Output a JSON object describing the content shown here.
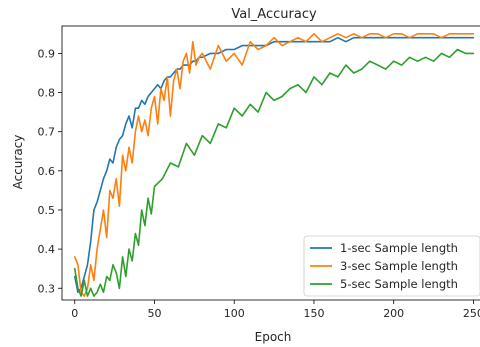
{
  "chart_data": {
    "type": "line",
    "title": "Val_Accuracy",
    "xlabel": "Epoch",
    "ylabel": "Accuracy",
    "xlim": [
      -8,
      256
    ],
    "ylim": [
      0.27,
      0.97
    ],
    "xticks": [
      0,
      50,
      100,
      150,
      200,
      250
    ],
    "yticks": [
      0.3,
      0.4,
      0.5,
      0.6,
      0.7,
      0.8,
      0.9
    ],
    "xtick_labels": [
      "0",
      "50",
      "100",
      "150",
      "200",
      "250"
    ],
    "ytick_labels": [
      "0.3",
      "0.4",
      "0.5",
      "0.6",
      "0.7",
      "0.8",
      "0.9"
    ],
    "grid": false,
    "legend_position": "lower-right",
    "series": [
      {
        "name": "1-sec Sample length",
        "color": "#1f77b4",
        "x": [
          0,
          2,
          4,
          6,
          8,
          10,
          12,
          14,
          16,
          18,
          20,
          22,
          24,
          26,
          28,
          30,
          32,
          34,
          36,
          38,
          40,
          42,
          44,
          46,
          48,
          50,
          52,
          54,
          56,
          58,
          60,
          62,
          64,
          66,
          68,
          70,
          72,
          74,
          76,
          78,
          80,
          85,
          90,
          95,
          100,
          105,
          110,
          115,
          120,
          125,
          130,
          135,
          140,
          145,
          150,
          155,
          160,
          165,
          170,
          175,
          180,
          185,
          190,
          195,
          200,
          205,
          210,
          215,
          220,
          225,
          230,
          235,
          240,
          245,
          250
        ],
        "values": [
          0.33,
          0.29,
          0.3,
          0.33,
          0.36,
          0.42,
          0.5,
          0.52,
          0.55,
          0.58,
          0.6,
          0.63,
          0.62,
          0.66,
          0.68,
          0.69,
          0.72,
          0.74,
          0.71,
          0.76,
          0.76,
          0.78,
          0.77,
          0.79,
          0.8,
          0.81,
          0.82,
          0.81,
          0.83,
          0.84,
          0.84,
          0.85,
          0.86,
          0.86,
          0.87,
          0.87,
          0.87,
          0.88,
          0.88,
          0.89,
          0.89,
          0.9,
          0.9,
          0.91,
          0.91,
          0.92,
          0.92,
          0.92,
          0.92,
          0.93,
          0.93,
          0.93,
          0.93,
          0.93,
          0.93,
          0.93,
          0.93,
          0.94,
          0.93,
          0.94,
          0.94,
          0.94,
          0.94,
          0.94,
          0.94,
          0.94,
          0.94,
          0.94,
          0.94,
          0.94,
          0.94,
          0.94,
          0.94,
          0.94,
          0.94
        ]
      },
      {
        "name": "3-sec Sample length",
        "color": "#ff7f0e",
        "x": [
          0,
          2,
          4,
          6,
          8,
          10,
          12,
          14,
          16,
          18,
          20,
          22,
          24,
          26,
          28,
          30,
          32,
          34,
          36,
          38,
          40,
          42,
          44,
          46,
          48,
          50,
          52,
          54,
          56,
          58,
          60,
          62,
          64,
          66,
          68,
          70,
          72,
          74,
          76,
          78,
          80,
          85,
          90,
          95,
          100,
          105,
          110,
          115,
          120,
          125,
          130,
          135,
          140,
          145,
          150,
          155,
          160,
          165,
          170,
          175,
          180,
          185,
          190,
          195,
          200,
          205,
          210,
          215,
          220,
          225,
          230,
          235,
          240,
          245,
          250
        ],
        "values": [
          0.38,
          0.36,
          0.29,
          0.28,
          0.3,
          0.36,
          0.32,
          0.4,
          0.45,
          0.5,
          0.43,
          0.55,
          0.53,
          0.58,
          0.51,
          0.64,
          0.6,
          0.66,
          0.62,
          0.7,
          0.74,
          0.7,
          0.73,
          0.69,
          0.76,
          0.79,
          0.72,
          0.81,
          0.78,
          0.84,
          0.74,
          0.83,
          0.86,
          0.81,
          0.88,
          0.9,
          0.85,
          0.93,
          0.87,
          0.89,
          0.9,
          0.86,
          0.92,
          0.88,
          0.9,
          0.87,
          0.93,
          0.91,
          0.92,
          0.94,
          0.92,
          0.93,
          0.94,
          0.93,
          0.95,
          0.93,
          0.94,
          0.95,
          0.94,
          0.95,
          0.94,
          0.95,
          0.95,
          0.94,
          0.95,
          0.95,
          0.94,
          0.95,
          0.95,
          0.95,
          0.94,
          0.95,
          0.95,
          0.95,
          0.95
        ]
      },
      {
        "name": "5-sec Sample length",
        "color": "#2ca02c",
        "x": [
          0,
          2,
          4,
          6,
          8,
          10,
          12,
          14,
          16,
          18,
          20,
          22,
          24,
          26,
          28,
          30,
          32,
          34,
          36,
          38,
          40,
          42,
          44,
          46,
          48,
          50,
          55,
          60,
          65,
          70,
          75,
          80,
          85,
          90,
          95,
          100,
          105,
          110,
          115,
          120,
          125,
          130,
          135,
          140,
          145,
          150,
          155,
          160,
          165,
          170,
          175,
          180,
          185,
          190,
          195,
          200,
          205,
          210,
          215,
          220,
          225,
          230,
          235,
          240,
          245,
          250
        ],
        "values": [
          0.35,
          0.3,
          0.28,
          0.32,
          0.28,
          0.3,
          0.28,
          0.29,
          0.31,
          0.29,
          0.33,
          0.32,
          0.36,
          0.34,
          0.3,
          0.38,
          0.33,
          0.4,
          0.37,
          0.44,
          0.41,
          0.5,
          0.46,
          0.53,
          0.49,
          0.56,
          0.58,
          0.62,
          0.61,
          0.67,
          0.64,
          0.69,
          0.67,
          0.72,
          0.71,
          0.76,
          0.74,
          0.77,
          0.75,
          0.8,
          0.78,
          0.79,
          0.81,
          0.82,
          0.8,
          0.84,
          0.82,
          0.85,
          0.84,
          0.87,
          0.85,
          0.86,
          0.88,
          0.87,
          0.86,
          0.88,
          0.87,
          0.89,
          0.88,
          0.89,
          0.88,
          0.9,
          0.89,
          0.91,
          0.9,
          0.9
        ]
      }
    ]
  }
}
